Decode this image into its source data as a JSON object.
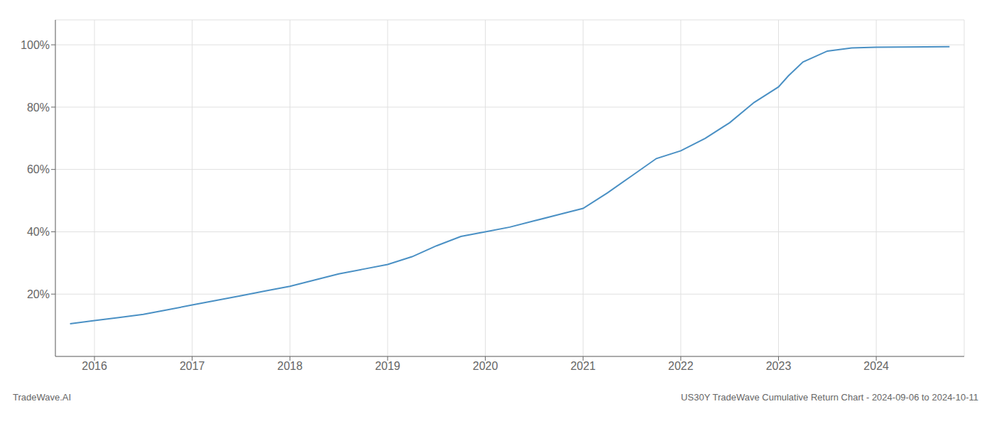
{
  "chart_data": {
    "type": "line",
    "title": "US30Y TradeWave Cumulative Return Chart - 2024-09-06 to 2024-10-11",
    "annotations": [
      "TradeWave.AI"
    ],
    "color": "#4a90c4",
    "grid": true,
    "x": [
      2015.75,
      2016.0,
      2016.25,
      2016.5,
      2016.75,
      2017.0,
      2017.25,
      2017.5,
      2017.75,
      2018.0,
      2018.25,
      2018.5,
      2018.75,
      2019.0,
      2019.25,
      2019.5,
      2019.75,
      2020.0,
      2020.25,
      2020.5,
      2020.75,
      2021.0,
      2021.25,
      2021.5,
      2021.75,
      2022.0,
      2022.25,
      2022.5,
      2022.75,
      2023.0,
      2023.1,
      2023.25,
      2023.5,
      2023.75,
      2024.0,
      2024.25,
      2024.75
    ],
    "values": [
      10.5,
      11.5,
      12.5,
      13.5,
      15.0,
      16.5,
      18.0,
      19.5,
      21.0,
      22.5,
      24.5,
      26.5,
      28.0,
      29.5,
      32.0,
      35.5,
      38.5,
      40.0,
      41.5,
      43.5,
      45.5,
      47.5,
      52.5,
      58.0,
      63.5,
      66.0,
      70.0,
      75.0,
      81.5,
      86.5,
      90.0,
      94.5,
      98.0,
      99.0,
      99.2,
      99.3,
      99.4
    ],
    "xlim": [
      2015.6,
      2024.9
    ],
    "xticks": [
      2016,
      2017,
      2018,
      2019,
      2020,
      2021,
      2022,
      2023,
      2024
    ],
    "ylim": [
      0,
      108
    ],
    "yticks": [
      {
        "value": 20,
        "label": "20%"
      },
      {
        "value": 40,
        "label": "40%"
      },
      {
        "value": 60,
        "label": "60%"
      },
      {
        "value": 80,
        "label": "80%"
      },
      {
        "value": 100,
        "label": "100%"
      }
    ]
  }
}
